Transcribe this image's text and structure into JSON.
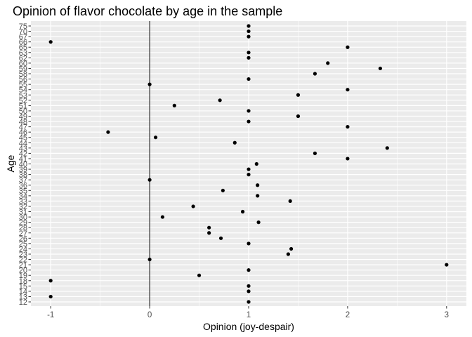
{
  "chart_data": {
    "type": "scatter",
    "title": "Opinion of flavor chocolate by age in the sample",
    "xlabel": "Opinion (joy-despair)",
    "ylabel": "Age",
    "xlim": [
      -1.2,
      3.2
    ],
    "x_ticks": [
      -1,
      0,
      1,
      2,
      3
    ],
    "y_categories": [
      "12",
      "13",
      "14",
      "15",
      "18",
      "19",
      "20",
      "21",
      "22",
      "23",
      "24",
      "25",
      "26",
      "27",
      "28",
      "29",
      "30",
      "31",
      "32",
      "33",
      "34",
      "35",
      "36",
      "37",
      "38",
      "39",
      "40",
      "41",
      "42",
      "43",
      "44",
      "45",
      "46",
      "47",
      "48",
      "49",
      "50",
      "51",
      "52",
      "53",
      "54",
      "55",
      "56",
      "58",
      "59",
      "60",
      "62",
      "63",
      "65",
      "66",
      "67",
      "70",
      "75"
    ],
    "points": [
      {
        "age": "12",
        "opinion": 1
      },
      {
        "age": "13",
        "opinion": -1
      },
      {
        "age": "14",
        "opinion": 1
      },
      {
        "age": "15",
        "opinion": 1
      },
      {
        "age": "18",
        "opinion": -1
      },
      {
        "age": "19",
        "opinion": 0.5
      },
      {
        "age": "20",
        "opinion": 1
      },
      {
        "age": "21",
        "opinion": 3
      },
      {
        "age": "22",
        "opinion": 0
      },
      {
        "age": "23",
        "opinion": 1.4
      },
      {
        "age": "24",
        "opinion": 1.43
      },
      {
        "age": "25",
        "opinion": 1
      },
      {
        "age": "26",
        "opinion": 0.72
      },
      {
        "age": "27",
        "opinion": 0.6
      },
      {
        "age": "28",
        "opinion": 0.6
      },
      {
        "age": "29",
        "opinion": 1.1
      },
      {
        "age": "30",
        "opinion": 0.13
      },
      {
        "age": "31",
        "opinion": 0.94
      },
      {
        "age": "32",
        "opinion": 0.44
      },
      {
        "age": "33",
        "opinion": 1.42
      },
      {
        "age": "34",
        "opinion": 1.09
      },
      {
        "age": "35",
        "opinion": 0.74
      },
      {
        "age": "36",
        "opinion": 1.09
      },
      {
        "age": "37",
        "opinion": 0
      },
      {
        "age": "38",
        "opinion": 1
      },
      {
        "age": "39",
        "opinion": 1
      },
      {
        "age": "40",
        "opinion": 1.08
      },
      {
        "age": "41",
        "opinion": 2
      },
      {
        "age": "42",
        "opinion": 1.67
      },
      {
        "age": "43",
        "opinion": 2.4
      },
      {
        "age": "44",
        "opinion": 0.86
      },
      {
        "age": "45",
        "opinion": 0.06
      },
      {
        "age": "46",
        "opinion": -0.42
      },
      {
        "age": "47",
        "opinion": 2
      },
      {
        "age": "48",
        "opinion": 1
      },
      {
        "age": "49",
        "opinion": 1.5
      },
      {
        "age": "50",
        "opinion": 1
      },
      {
        "age": "51",
        "opinion": 0.25
      },
      {
        "age": "52",
        "opinion": 0.71
      },
      {
        "age": "53",
        "opinion": 1.5
      },
      {
        "age": "54",
        "opinion": 2
      },
      {
        "age": "55",
        "opinion": 0
      },
      {
        "age": "56",
        "opinion": 1
      },
      {
        "age": "58",
        "opinion": 1.67
      },
      {
        "age": "59",
        "opinion": 2.33
      },
      {
        "age": "60",
        "opinion": 1.8
      },
      {
        "age": "62",
        "opinion": 1
      },
      {
        "age": "63",
        "opinion": 1
      },
      {
        "age": "65",
        "opinion": 2
      },
      {
        "age": "66",
        "opinion": -1
      },
      {
        "age": "67",
        "opinion": 1
      },
      {
        "age": "70",
        "opinion": 1
      },
      {
        "age": "75",
        "opinion": 1
      }
    ],
    "reference_line_x": 0,
    "grid": true,
    "legend": "none",
    "colors": {
      "panel": "#ebebeb",
      "grid": "#ffffff",
      "point": "#000000",
      "tick_text": "#4d4d4d",
      "reference_line": "#000000"
    }
  }
}
